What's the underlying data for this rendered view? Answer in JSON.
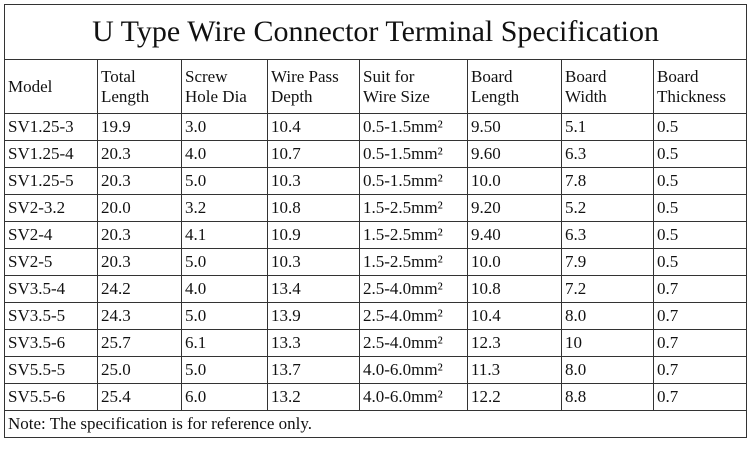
{
  "title": "U Type Wire Connector Terminal Specification",
  "header": [
    [
      "Model"
    ],
    [
      "Total",
      "Length"
    ],
    [
      "Screw",
      "Hole Dia"
    ],
    [
      "Wire Pass",
      "Depth"
    ],
    [
      "Suit for",
      "Wire Size"
    ],
    [
      "Board",
      "Length"
    ],
    [
      "Board",
      "Width"
    ],
    [
      "Board",
      "Thickness"
    ]
  ],
  "rows": [
    [
      "SV1.25-3",
      "19.9",
      "3.0",
      "10.4",
      "0.5-1.5mm²",
      "9.50",
      "5.1",
      "0.5"
    ],
    [
      "SV1.25-4",
      "20.3",
      "4.0",
      "10.7",
      "0.5-1.5mm²",
      "9.60",
      "6.3",
      "0.5"
    ],
    [
      "SV1.25-5",
      "20.3",
      "5.0",
      "10.3",
      "0.5-1.5mm²",
      "10.0",
      "7.8",
      "0.5"
    ],
    [
      "SV2-3.2",
      "20.0",
      "3.2",
      "10.8",
      "1.5-2.5mm²",
      "9.20",
      "5.2",
      "0.5"
    ],
    [
      "SV2-4",
      "20.3",
      "4.1",
      "10.9",
      "1.5-2.5mm²",
      "9.40",
      "6.3",
      "0.5"
    ],
    [
      "SV2-5",
      "20.3",
      "5.0",
      "10.3",
      "1.5-2.5mm²",
      "10.0",
      "7.9",
      "0.5"
    ],
    [
      "SV3.5-4",
      "24.2",
      "4.0",
      "13.4",
      "2.5-4.0mm²",
      "10.8",
      "7.2",
      "0.7"
    ],
    [
      "SV3.5-5",
      "24.3",
      "5.0",
      "13.9",
      "2.5-4.0mm²",
      "10.4",
      "8.0",
      "0.7"
    ],
    [
      "SV3.5-6",
      "25.7",
      "6.1",
      "13.3",
      "2.5-4.0mm²",
      "12.3",
      "10",
      "0.7"
    ],
    [
      "SV5.5-5",
      "25.0",
      "5.0",
      "13.7",
      "4.0-6.0mm²",
      "11.3",
      "8.0",
      "0.7"
    ],
    [
      "SV5.5-6",
      "25.4",
      "6.0",
      "13.2",
      "4.0-6.0mm²",
      "12.2",
      "8.8",
      "0.7"
    ]
  ],
  "note": "Note: The specification is for reference only."
}
